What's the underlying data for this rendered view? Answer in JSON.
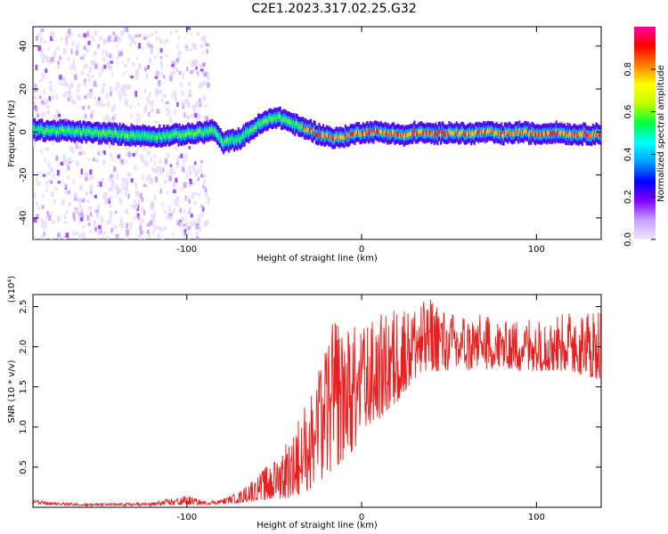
{
  "title": "C2E1.2023.317.02.25.G32",
  "chart_data": [
    {
      "type": "heatmap",
      "xlabel": "Height of straight line (km)",
      "ylabel": "Frequency (Hz)",
      "xlim": [
        -188,
        137
      ],
      "ylim": [
        -50,
        49
      ],
      "x_ticks": [
        -100,
        0,
        100
      ],
      "y_ticks": [
        40,
        20,
        0,
        -20,
        -40
      ],
      "colorbar": {
        "label": "Normalized spectral amplitude",
        "range": [
          0,
          1
        ],
        "ticks": [
          "0.0",
          "0.2",
          "0.4",
          "0.6",
          "0.8"
        ],
        "colors": [
          "#f0e6ff",
          "#c8a0ff",
          "#8000ff",
          "#0000ff",
          "#00a0ff",
          "#00ffff",
          "#00ff40",
          "#c0ff00",
          "#ffff00",
          "#ff8000",
          "#ff0000",
          "#ff00a0"
        ]
      },
      "signal_trace": {
        "x": [
          -188,
          -160,
          -140,
          -120,
          -100,
          -90,
          -85,
          -80,
          -70,
          -60,
          -55,
          -50,
          -45,
          -40,
          -35,
          -30,
          -25,
          -20,
          -15,
          -10,
          -5,
          0,
          10,
          20,
          25,
          30,
          40,
          50,
          60,
          70,
          80,
          90,
          100,
          110,
          120,
          137
        ],
        "y": [
          1,
          0,
          -1,
          -2,
          -1,
          0,
          1,
          -5,
          -3,
          3,
          5,
          7,
          6,
          4,
          2,
          1,
          -1,
          -2,
          -3,
          -2,
          -1,
          0,
          0,
          -1,
          -2,
          0,
          -1,
          0,
          -1,
          0,
          -1,
          0,
          -1,
          0,
          -1,
          -1
        ]
      }
    },
    {
      "type": "line",
      "xlabel": "Height of straight line (km)",
      "ylabel": "SNR (10 * v/v)",
      "y_multiplier": "(x10⁴)",
      "xlim": [
        -188,
        137
      ],
      "ylim": [
        0,
        2.65
      ],
      "x_ticks": [
        -100,
        0,
        100
      ],
      "y_ticks": [
        "0.5",
        "1.0",
        "1.5",
        "2.0",
        "2.5"
      ],
      "series": [
        {
          "color": "#e82020",
          "x": [
            -188,
            -180,
            -160,
            -140,
            -120,
            -100,
            -90,
            -80,
            -75,
            -70,
            -60,
            -50,
            -40,
            -30,
            -25,
            -20,
            -15,
            -10,
            -5,
            0,
            10,
            20,
            30,
            40,
            50,
            60,
            70,
            80,
            90,
            100,
            110,
            120,
            130,
            137
          ],
          "envelope_low": [
            0.05,
            0.03,
            0.02,
            0.02,
            0.02,
            0.03,
            0.03,
            0.04,
            0.05,
            0.05,
            0.08,
            0.1,
            0.12,
            0.2,
            0.3,
            0.4,
            0.5,
            0.6,
            0.7,
            0.8,
            1.1,
            1.3,
            1.6,
            1.7,
            1.7,
            1.7,
            1.7,
            1.75,
            1.7,
            1.7,
            1.7,
            1.7,
            1.6,
            1.6
          ],
          "envelope_high": [
            0.1,
            0.07,
            0.05,
            0.05,
            0.06,
            0.15,
            0.08,
            0.1,
            0.15,
            0.2,
            0.4,
            0.6,
            0.95,
            1.4,
            1.7,
            2.1,
            2.4,
            2.3,
            2.3,
            2.3,
            2.4,
            2.5,
            2.55,
            2.6,
            2.45,
            2.4,
            2.4,
            2.3,
            2.35,
            2.4,
            2.4,
            2.45,
            2.45,
            2.5
          ]
        }
      ]
    }
  ]
}
